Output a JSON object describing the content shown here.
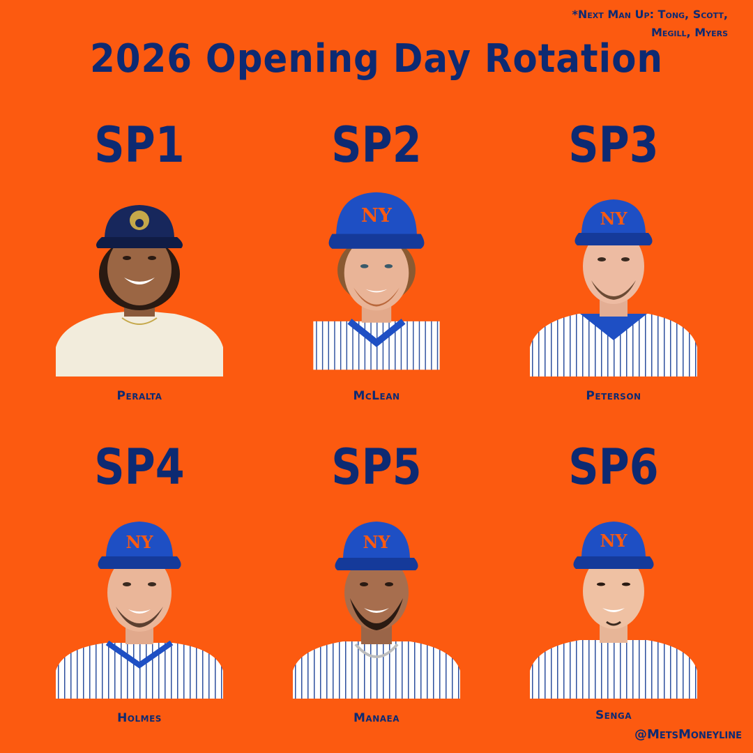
{
  "next_man_up": {
    "line1": "*Next Man Up: Tong, Scott,",
    "line2": "Megill, Myers"
  },
  "title": "2026 Opening Day Rotation",
  "slots": [
    {
      "label": "SP1",
      "name": "Peralta",
      "team": "brewers"
    },
    {
      "label": "SP2",
      "name": "McLean",
      "team": "mets"
    },
    {
      "label": "SP3",
      "name": "Peterson",
      "team": "mets"
    },
    {
      "label": "SP4",
      "name": "Holmes",
      "team": "mets"
    },
    {
      "label": "SP5",
      "name": "Manaea",
      "team": "mets"
    },
    {
      "label": "SP6",
      "name": "Senga",
      "team": "mets"
    }
  ],
  "handle": "@MetsMoneyline",
  "colors": {
    "background": "#FC5A10",
    "text": "#0D2A72",
    "mets_cap": "#1E4FC4",
    "brewers_cap": "#17275C",
    "pinstripe": "#2C4F9E"
  },
  "icons": {
    "player_photo": "player-headshot-icon",
    "cap_logo_mets": "ny-logo-icon",
    "cap_logo_brewers": "ball-glove-logo-icon"
  }
}
